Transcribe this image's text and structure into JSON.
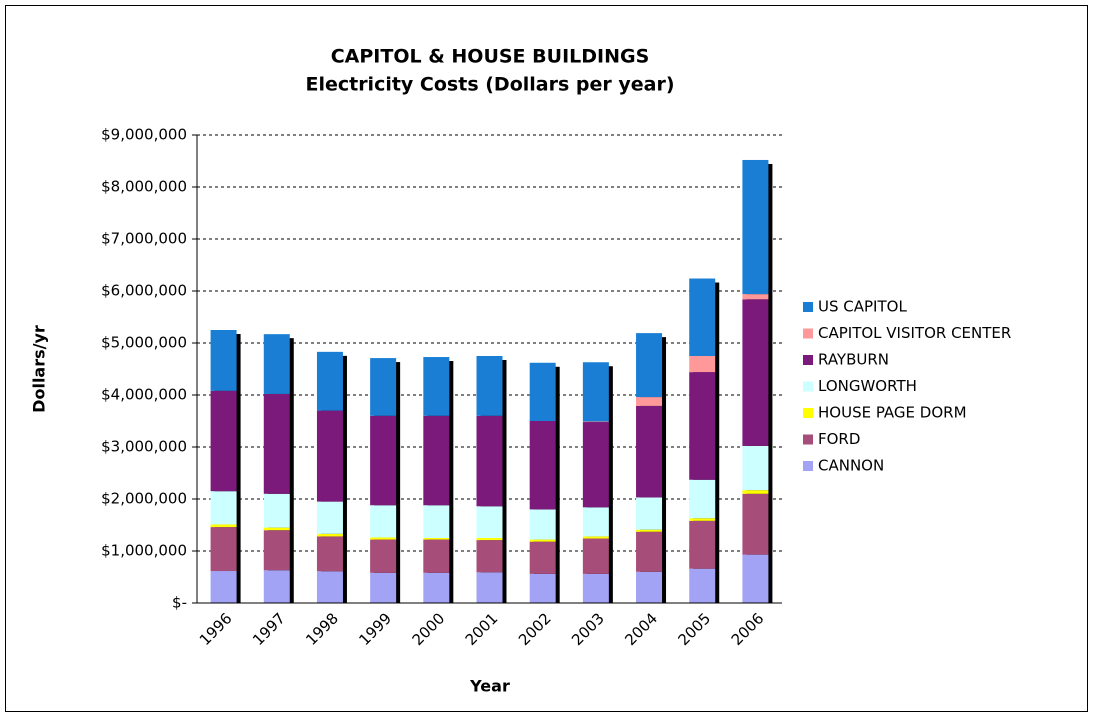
{
  "chart_data": {
    "type": "stacked-bar",
    "title": "CAPITOL & HOUSE BUILDINGS",
    "subtitle": "Electricity Costs (Dollars per year)",
    "y_label": "Dollars/yr",
    "x_label": "Year",
    "categories": [
      "1996",
      "1997",
      "1998",
      "1999",
      "2000",
      "2001",
      "2002",
      "2003",
      "2004",
      "2005",
      "2006"
    ],
    "series": [
      {
        "name": "CANNON",
        "color": "#a3a3f5",
        "values": [
          615000,
          630000,
          610000,
          580000,
          580000,
          590000,
          560000,
          560000,
          600000,
          660000,
          930000
        ]
      },
      {
        "name": "FORD",
        "color": "#a64d79",
        "values": [
          845000,
          770000,
          670000,
          640000,
          640000,
          620000,
          620000,
          680000,
          770000,
          920000,
          1170000
        ]
      },
      {
        "name": "HOUSE PAGE DORM",
        "color": "#ffff00",
        "values": [
          50000,
          50000,
          50000,
          40000,
          30000,
          40000,
          40000,
          40000,
          40000,
          50000,
          70000
        ]
      },
      {
        "name": "LONGWORTH",
        "color": "#ccffff",
        "values": [
          640000,
          650000,
          620000,
          620000,
          630000,
          610000,
          580000,
          560000,
          620000,
          740000,
          850000
        ]
      },
      {
        "name": "RAYBURN",
        "color": "#7b1a7b",
        "values": [
          1930000,
          1920000,
          1750000,
          1720000,
          1720000,
          1740000,
          1700000,
          1640000,
          1760000,
          2070000,
          2820000
        ]
      },
      {
        "name": "CAPITOL VISITOR CENTER",
        "color": "#ff9999",
        "values": [
          0,
          0,
          0,
          0,
          0,
          0,
          0,
          10000,
          170000,
          310000,
          100000
        ]
      },
      {
        "name": "US CAPITOL",
        "color": "#1a7fd4",
        "values": [
          1170000,
          1150000,
          1130000,
          1110000,
          1130000,
          1150000,
          1120000,
          1140000,
          1230000,
          1490000,
          2580000
        ]
      }
    ],
    "ylim": [
      0,
      9000000
    ],
    "yticks": [
      {
        "value": 0,
        "label": "$-"
      },
      {
        "value": 1000000,
        "label": "$1,000,000"
      },
      {
        "value": 2000000,
        "label": "$2,000,000"
      },
      {
        "value": 3000000,
        "label": "$3,000,000"
      },
      {
        "value": 4000000,
        "label": "$4,000,000"
      },
      {
        "value": 5000000,
        "label": "$5,000,000"
      },
      {
        "value": 6000000,
        "label": "$6,000,000"
      },
      {
        "value": 7000000,
        "label": "$7,000,000"
      },
      {
        "value": 8000000,
        "label": "$8,000,000"
      },
      {
        "value": 9000000,
        "label": "$9,000,000"
      }
    ],
    "grid": true,
    "legend": "right"
  }
}
